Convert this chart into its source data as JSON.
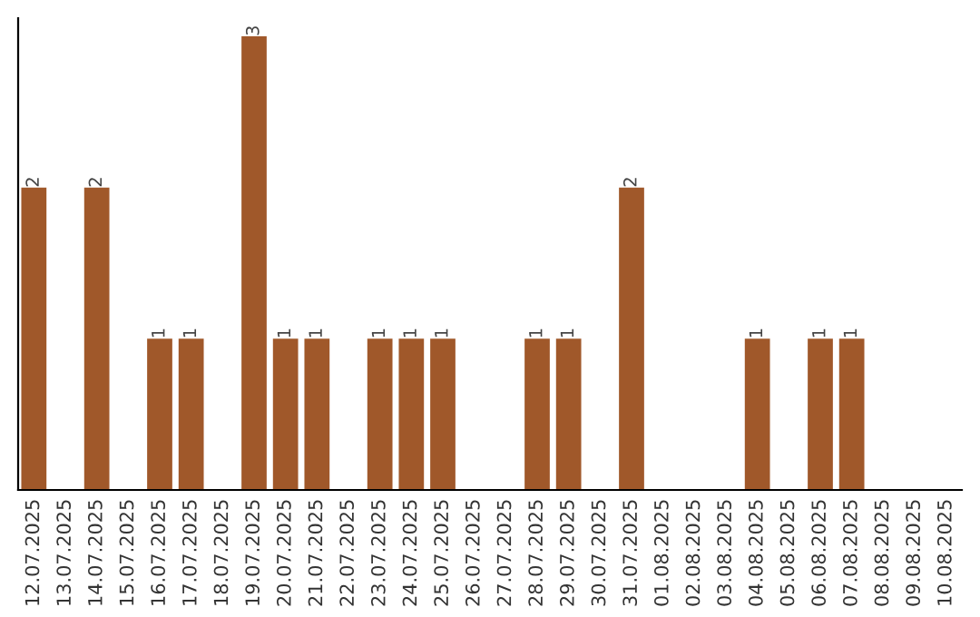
{
  "chart_data": {
    "type": "bar",
    "categories": [
      "12.07.2025",
      "13.07.2025",
      "14.07.2025",
      "15.07.2025",
      "16.07.2025",
      "17.07.2025",
      "18.07.2025",
      "19.07.2025",
      "20.07.2025",
      "21.07.2025",
      "22.07.2025",
      "23.07.2025",
      "24.07.2025",
      "25.07.2025",
      "26.07.2025",
      "27.07.2025",
      "28.07.2025",
      "29.07.2025",
      "30.07.2025",
      "31.07.2025",
      "01.08.2025",
      "02.08.2025",
      "03.08.2025",
      "04.08.2025",
      "05.08.2025",
      "06.08.2025",
      "07.08.2025",
      "08.08.2025",
      "09.08.2025",
      "10.08.2025"
    ],
    "values": [
      2,
      0,
      2,
      0,
      1,
      1,
      0,
      3,
      1,
      1,
      0,
      1,
      1,
      1,
      0,
      0,
      1,
      1,
      0,
      2,
      0,
      0,
      0,
      1,
      0,
      1,
      1,
      0,
      0,
      0
    ],
    "value_labels": [
      "2",
      null,
      "2",
      null,
      "1",
      "1",
      null,
      "3",
      "1",
      "1",
      null,
      "1",
      "1",
      "1",
      null,
      null,
      "1",
      "1",
      null,
      "2",
      null,
      null,
      null,
      "1",
      null,
      "1",
      "1",
      null,
      null,
      null
    ],
    "color": "#a0582a",
    "tick_labels": "x",
    "grid": false,
    "legend": false
  }
}
